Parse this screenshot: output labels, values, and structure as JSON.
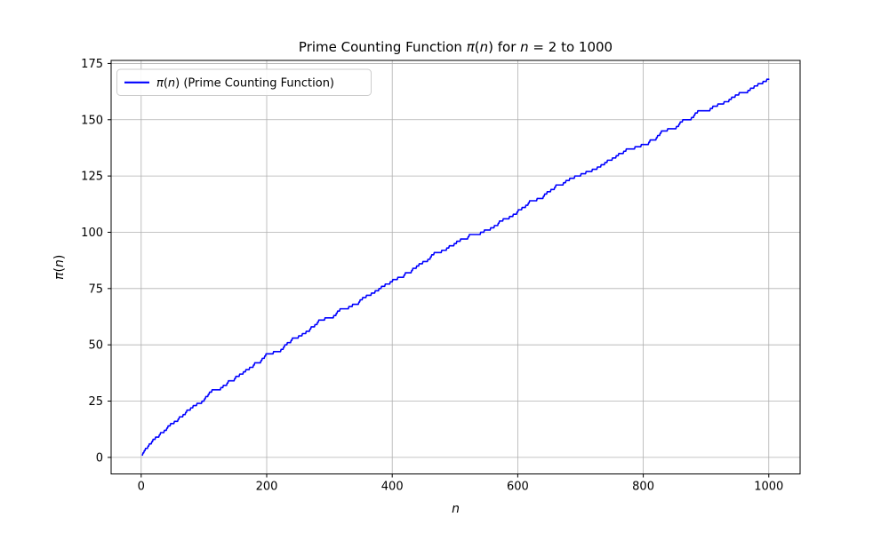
{
  "title": {
    "text": "Prime Counting Function π(n) for n = 2 to 1000",
    "segments": [
      {
        "t": "Prime Counting Function ",
        "i": false
      },
      {
        "t": "π",
        "i": true
      },
      {
        "t": "(",
        "i": false
      },
      {
        "t": "n",
        "i": true
      },
      {
        "t": ") for ",
        "i": false
      },
      {
        "t": "n",
        "i": true
      },
      {
        "t": " = 2 to 1000",
        "i": false
      }
    ]
  },
  "xlabel": {
    "text": "n",
    "segments": [
      {
        "t": "n",
        "i": true
      }
    ]
  },
  "ylabel": {
    "text": "π(n)",
    "segments": [
      {
        "t": "π",
        "i": true
      },
      {
        "t": "(",
        "i": false
      },
      {
        "t": "n",
        "i": true
      },
      {
        "t": ")",
        "i": false
      }
    ]
  },
  "legend": {
    "position": "upper left",
    "entries": [
      {
        "label": "π(n) (Prime Counting Function)",
        "segments": [
          {
            "t": "π",
            "i": true
          },
          {
            "t": "(",
            "i": false
          },
          {
            "t": "n",
            "i": true
          },
          {
            "t": ") (Prime Counting Function)",
            "i": false
          }
        ],
        "color": "#0000ff"
      }
    ]
  },
  "axes": {
    "x_ticks": [
      0,
      200,
      400,
      600,
      800,
      1000
    ],
    "y_ticks": [
      0,
      25,
      50,
      75,
      100,
      125,
      150,
      175
    ],
    "xlim": [
      -47.9,
      1049.9
    ],
    "ylim": [
      -7.35,
      176.35
    ],
    "grid": true
  },
  "colors": {
    "line": "#0000ff",
    "grid": "#b0b0b0",
    "spine": "#000000",
    "background": "#ffffff",
    "legend_border": "#cccccc",
    "legend_fill": "#ffffff",
    "text": "#000000"
  },
  "chart_data": {
    "type": "line",
    "title": "Prime Counting Function π(n) for n = 2 to 1000",
    "xlabel": "n",
    "ylabel": "π(n)",
    "xlim": [
      -47.9,
      1049.9
    ],
    "ylim": [
      -7.35,
      176.35
    ],
    "x_ticks": [
      0,
      200,
      400,
      600,
      800,
      1000
    ],
    "y_ticks": [
      0,
      25,
      50,
      75,
      100,
      125,
      150,
      175
    ],
    "grid": true,
    "legend_position": "upper left",
    "series": [
      {
        "name": "π(n) (Prime Counting Function)",
        "color": "#0000ff",
        "style": "step-like line over integers n = 2..1000, y = count of primes ≤ n",
        "x_range": [
          2,
          1000
        ],
        "start_point": [
          2,
          1
        ],
        "end_point": [
          1000,
          168
        ],
        "primes": [
          2,
          3,
          5,
          7,
          11,
          13,
          17,
          19,
          23,
          29,
          31,
          37,
          41,
          43,
          47,
          53,
          59,
          61,
          67,
          71,
          73,
          79,
          83,
          89,
          97,
          101,
          103,
          107,
          109,
          113,
          127,
          131,
          137,
          139,
          149,
          151,
          157,
          163,
          167,
          173,
          179,
          181,
          191,
          193,
          197,
          199,
          211,
          223,
          227,
          229,
          233,
          239,
          241,
          251,
          257,
          263,
          269,
          271,
          277,
          281,
          283,
          293,
          307,
          311,
          313,
          317,
          331,
          337,
          347,
          349,
          353,
          359,
          367,
          373,
          379,
          383,
          389,
          397,
          401,
          409,
          419,
          421,
          431,
          433,
          439,
          443,
          449,
          457,
          461,
          463,
          467,
          479,
          487,
          491,
          499,
          503,
          509,
          521,
          523,
          541,
          547,
          557,
          563,
          569,
          571,
          577,
          587,
          593,
          599,
          601,
          607,
          613,
          617,
          619,
          631,
          641,
          643,
          647,
          653,
          659,
          661,
          673,
          677,
          683,
          691,
          701,
          709,
          719,
          727,
          733,
          739,
          743,
          751,
          757,
          761,
          769,
          773,
          787,
          797,
          809,
          811,
          821,
          823,
          827,
          829,
          839,
          853,
          857,
          859,
          863,
          877,
          881,
          883,
          887,
          907,
          911,
          919,
          929,
          937,
          941,
          947,
          953,
          967,
          971,
          977,
          983,
          991,
          997
        ],
        "checkpoint_values": {
          "pi_100": 25,
          "pi_200": 46,
          "pi_400": 78,
          "pi_500": 95,
          "pi_541": 100,
          "pi_600": 109,
          "pi_800": 139,
          "pi_1000": 168
        }
      }
    ]
  }
}
